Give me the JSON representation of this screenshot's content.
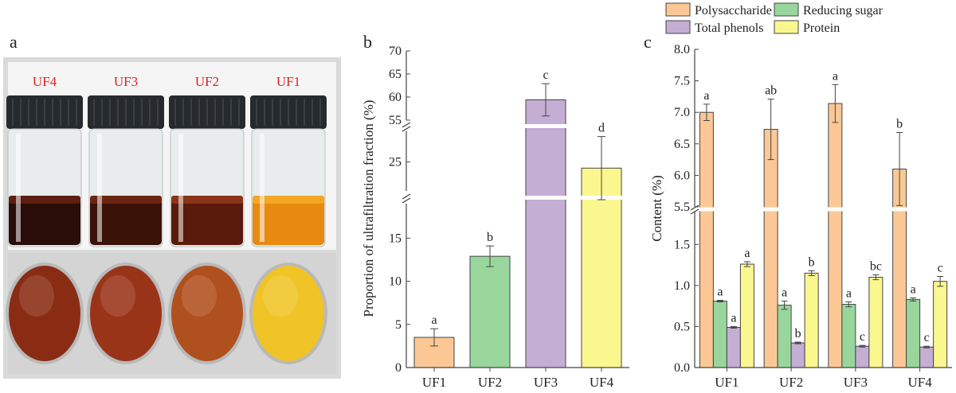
{
  "panels": {
    "a": "a",
    "b": "b",
    "c": "c"
  },
  "photo": {
    "vials": [
      {
        "label": "UF4",
        "liquid": "#2a0d08",
        "liquid_top": "#5b1e10",
        "plate": "#8a2c14"
      },
      {
        "label": "UF3",
        "liquid": "#3a1208",
        "liquid_top": "#6b2410",
        "plate": "#9a3418"
      },
      {
        "label": "UF2",
        "liquid": "#5a1a0c",
        "liquid_top": "#8a3418",
        "plate": "#b0501e"
      },
      {
        "label": "UF1",
        "liquid": "#e88a10",
        "liquid_top": "#f5a624",
        "plate": "#f0c426"
      }
    ],
    "label_color": "#e02020"
  },
  "chart_data": [
    {
      "type": "bar",
      "ylabel": "Proportion of ultrafiltration fraction (%)",
      "categories": [
        "UF1",
        "UF2",
        "UF3",
        "UF4"
      ],
      "values": [
        3.5,
        12.9,
        59.4,
        24.3
      ],
      "errors": [
        1.0,
        1.2,
        3.5,
        3.6
      ],
      "letters": [
        "a",
        "b",
        "c",
        "d"
      ],
      "colors": [
        "#fbc895",
        "#99d69c",
        "#c4aed3",
        "#fbf78f"
      ],
      "lower_axis": {
        "range": [
          0,
          19
        ],
        "ticks": [
          "0",
          "5",
          "10",
          "15"
        ]
      },
      "mid_axis": {
        "range": [
          21.7,
          28.5
        ],
        "ticks": [
          "25"
        ]
      },
      "upper_axis": {
        "range": [
          55,
          70
        ],
        "ticks": [
          "55",
          "60",
          "65",
          "70"
        ]
      }
    },
    {
      "type": "bar",
      "ylabel": "Content (%)",
      "categories": [
        "UF1",
        "UF2",
        "UF3",
        "UF4"
      ],
      "series": [
        {
          "name": "Polysaccharide",
          "color": "#fbc895",
          "values": [
            7.0,
            6.73,
            7.14,
            6.1
          ],
          "errors": [
            0.13,
            0.48,
            0.3,
            0.58
          ],
          "letters": [
            "a",
            "ab",
            "a",
            "b"
          ]
        },
        {
          "name": "Reducing sugar",
          "color": "#99d69c",
          "values": [
            0.81,
            0.76,
            0.77,
            0.83
          ],
          "errors": [
            0.01,
            0.05,
            0.03,
            0.02
          ],
          "letters": [
            "a",
            "a",
            "a",
            "a"
          ]
        },
        {
          "name": "Total phenols",
          "color": "#c4aed3",
          "values": [
            0.49,
            0.3,
            0.26,
            0.25
          ],
          "errors": [
            0.01,
            0.01,
            0.01,
            0.01
          ],
          "letters": [
            "a",
            "b",
            "c",
            "c"
          ]
        },
        {
          "name": "Protein",
          "color": "#fbf78f",
          "values": [
            1.26,
            1.15,
            1.1,
            1.05
          ],
          "errors": [
            0.03,
            0.03,
            0.03,
            0.06
          ],
          "letters": [
            "a",
            "b",
            "bc",
            "c"
          ]
        }
      ],
      "lower_axis": {
        "range": [
          0,
          1.9
        ],
        "ticks": [
          "0.0",
          "0.5",
          "1.0",
          "1.5"
        ]
      },
      "upper_axis": {
        "range": [
          5.5,
          8.0
        ],
        "ticks": [
          "5.5",
          "6.0",
          "6.5",
          "7.0",
          "7.5",
          "8.0"
        ]
      }
    }
  ]
}
